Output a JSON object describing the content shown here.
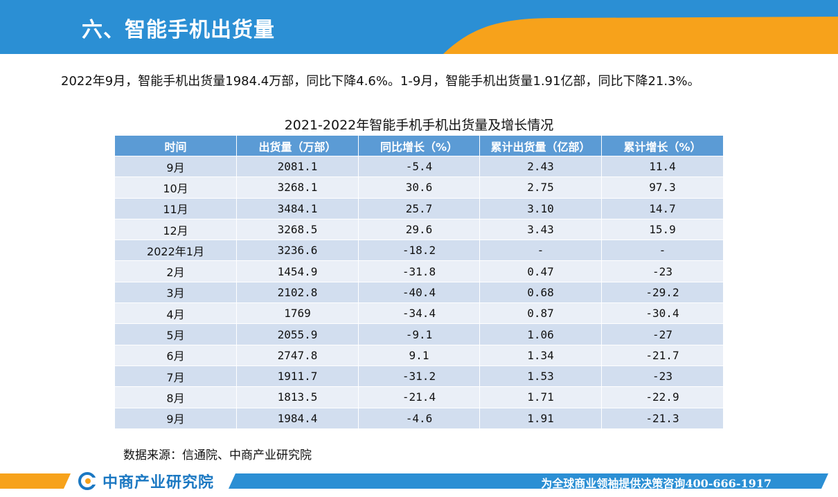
{
  "header": {
    "title": "六、智能手机出货量"
  },
  "summary": "2022年9月，智能手机出货量1984.4万部，同比下降4.6%。1-9月，智能手机出货量1.91亿部，同比下降21.3%。",
  "table": {
    "caption": "2021-2022年智能手机手机出货量及增长情况",
    "columns": [
      "时间",
      "出货量（万部）",
      "同比增长（%）",
      "累计出货量（亿部）",
      "累计增长（%）"
    ],
    "rows": [
      [
        "9月",
        "2081.1",
        "-5.4",
        "2.43",
        "11.4"
      ],
      [
        "10月",
        "3268.1",
        "30.6",
        "2.75",
        "97.3"
      ],
      [
        "11月",
        "3484.1",
        "25.7",
        "3.10",
        "14.7"
      ],
      [
        "12月",
        "3268.5",
        "29.6",
        "3.43",
        "15.9"
      ],
      [
        "2022年1月",
        "3236.6",
        "-18.2",
        "-",
        "-"
      ],
      [
        "2月",
        "1454.9",
        "-31.8",
        "0.47",
        "-23"
      ],
      [
        "3月",
        "2102.8",
        "-40.4",
        "0.68",
        "-29.2"
      ],
      [
        "4月",
        "1769",
        "-34.4",
        "0.87",
        "-30.4"
      ],
      [
        "5月",
        "2055.9",
        "-9.1",
        "1.06",
        "-27"
      ],
      [
        "6月",
        "2747.8",
        "9.1",
        "1.34",
        "-21.7"
      ],
      [
        "7月",
        "1911.7",
        "-31.2",
        "1.53",
        "-23"
      ],
      [
        "8月",
        "1813.5",
        "-21.4",
        "1.71",
        "-22.9"
      ],
      [
        "9月",
        "1984.4",
        "-4.6",
        "1.91",
        "-21.3"
      ]
    ]
  },
  "source": "数据来源：信通院、中商产业研究院",
  "footer": {
    "logo_text": "中商产业研究院",
    "slogan": "为全球商业领袖提供决策咨询400-666-1917"
  },
  "colors": {
    "header_blue": "#2b8fd4",
    "accent_orange": "#f7a21b",
    "table_header": "#5b9bd5",
    "row_odd": "#d2deef",
    "row_even": "#eaeff7",
    "logo_blue": "#1b78c2"
  },
  "icons": {
    "logo": "askci-logo-icon"
  }
}
